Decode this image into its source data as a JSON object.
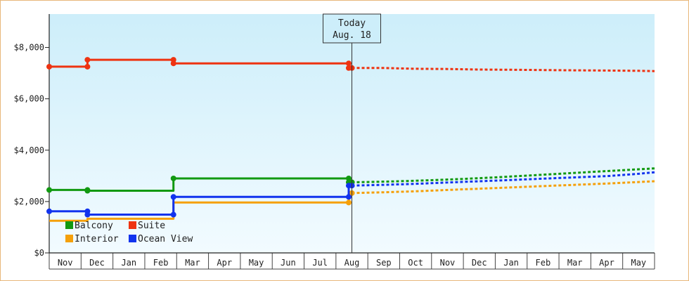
{
  "chart_data": {
    "type": "line",
    "title": "",
    "xlabel": "",
    "ylabel": "",
    "x_categories": [
      "Nov",
      "Dec",
      "Jan",
      "Feb",
      "Mar",
      "Apr",
      "May",
      "Jun",
      "Jul",
      "Aug",
      "Sep",
      "Oct",
      "Nov",
      "Dec",
      "Jan",
      "Feb",
      "Mar",
      "Apr",
      "May"
    ],
    "y_ticks": [
      "$0",
      "$2,000",
      "$4,000",
      "$6,000",
      "$8,000"
    ],
    "y_tick_values": [
      0,
      2000,
      4000,
      6000,
      8000
    ],
    "ylim": [
      0,
      9300
    ],
    "grid": "vertical",
    "legend_position": "bottom-left",
    "today_marker": {
      "line1": "Today",
      "line2": "Aug. 18",
      "x": 9.0
    },
    "series": [
      {
        "name": "Balcony",
        "color": "#119911",
        "points": [
          [
            -0.5,
            2450
          ],
          [
            0.7,
            2450
          ],
          [
            0.7,
            2420
          ],
          [
            3.4,
            2420
          ],
          [
            3.4,
            2900
          ],
          [
            8.9,
            2900
          ],
          [
            8.9,
            2750
          ],
          [
            9.0,
            2750
          ]
        ],
        "markers": [
          [
            -0.5,
            2450
          ],
          [
            0.7,
            2450
          ],
          [
            0.7,
            2420
          ],
          [
            3.4,
            2900
          ],
          [
            8.9,
            2900
          ],
          [
            8.9,
            2750
          ],
          [
            9.0,
            2750
          ]
        ],
        "forecast": [
          [
            9.0,
            2750
          ],
          [
            9.5,
            2760
          ],
          [
            10.5,
            2790
          ],
          [
            11.5,
            2830
          ],
          [
            12.5,
            2880
          ],
          [
            13.5,
            2940
          ],
          [
            14.5,
            3010
          ],
          [
            15.5,
            3080
          ],
          [
            16.5,
            3150
          ],
          [
            17.5,
            3220
          ],
          [
            18.5,
            3290
          ]
        ]
      },
      {
        "name": "Suite",
        "color": "#ee3311",
        "points": [
          [
            -0.5,
            7250
          ],
          [
            0.7,
            7250
          ],
          [
            0.7,
            7520
          ],
          [
            3.4,
            7520
          ],
          [
            3.4,
            7380
          ],
          [
            8.9,
            7380
          ],
          [
            8.9,
            7200
          ],
          [
            9.0,
            7200
          ]
        ],
        "markers": [
          [
            -0.5,
            7250
          ],
          [
            0.7,
            7250
          ],
          [
            0.7,
            7520
          ],
          [
            3.4,
            7520
          ],
          [
            3.4,
            7380
          ],
          [
            8.9,
            7380
          ],
          [
            8.9,
            7200
          ],
          [
            9.0,
            7200
          ]
        ],
        "forecast": [
          [
            9.0,
            7200
          ],
          [
            10.0,
            7200
          ],
          [
            11.0,
            7170
          ],
          [
            12.0,
            7160
          ],
          [
            13.0,
            7140
          ],
          [
            14.0,
            7130
          ],
          [
            15.0,
            7120
          ],
          [
            16.0,
            7110
          ],
          [
            17.0,
            7100
          ],
          [
            18.0,
            7090
          ],
          [
            18.5,
            7080
          ]
        ]
      },
      {
        "name": "Interior",
        "color": "#f5a00a",
        "points": [
          [
            -0.5,
            1250
          ],
          [
            0.7,
            1250
          ],
          [
            0.7,
            1330
          ],
          [
            3.4,
            1330
          ],
          [
            3.4,
            1960
          ],
          [
            8.9,
            1960
          ],
          [
            8.9,
            2330
          ],
          [
            9.0,
            2330
          ]
        ],
        "markers": [
          [
            8.9,
            1960
          ],
          [
            9.0,
            2330
          ]
        ],
        "forecast": [
          [
            9.0,
            2330
          ],
          [
            10.0,
            2360
          ],
          [
            11.0,
            2400
          ],
          [
            12.0,
            2450
          ],
          [
            13.0,
            2500
          ],
          [
            14.0,
            2550
          ],
          [
            15.0,
            2600
          ],
          [
            16.0,
            2650
          ],
          [
            17.0,
            2700
          ],
          [
            18.0,
            2760
          ],
          [
            18.5,
            2790
          ]
        ]
      },
      {
        "name": "Ocean View",
        "color": "#1133ee",
        "points": [
          [
            -0.5,
            1620
          ],
          [
            0.7,
            1620
          ],
          [
            0.7,
            1490
          ],
          [
            3.4,
            1490
          ],
          [
            3.4,
            2180
          ],
          [
            8.9,
            2180
          ],
          [
            8.9,
            2620
          ],
          [
            9.0,
            2620
          ]
        ],
        "markers": [
          [
            -0.5,
            1620
          ],
          [
            0.7,
            1620
          ],
          [
            0.7,
            1490
          ],
          [
            3.4,
            1490
          ],
          [
            3.4,
            2180
          ],
          [
            8.9,
            2180
          ],
          [
            8.9,
            2620
          ],
          [
            9.0,
            2620
          ]
        ],
        "forecast": [
          [
            9.0,
            2620
          ],
          [
            10.0,
            2650
          ],
          [
            11.0,
            2690
          ],
          [
            12.0,
            2740
          ],
          [
            13.0,
            2790
          ],
          [
            14.0,
            2840
          ],
          [
            15.0,
            2890
          ],
          [
            16.0,
            2940
          ],
          [
            17.0,
            2990
          ],
          [
            18.0,
            3080
          ],
          [
            18.5,
            3140
          ]
        ]
      }
    ]
  }
}
